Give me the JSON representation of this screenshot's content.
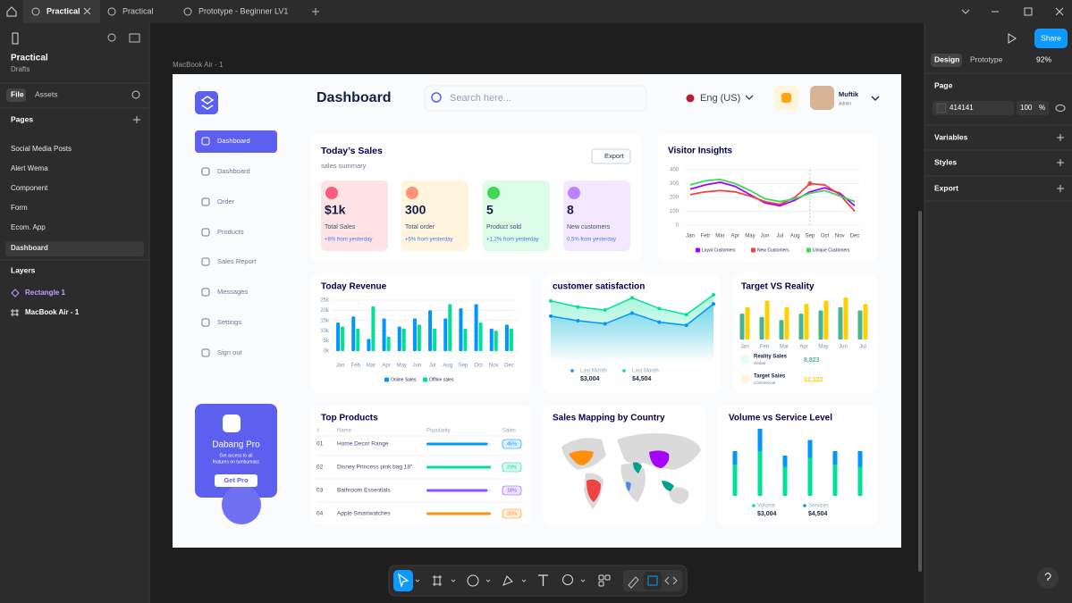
{
  "tabs": [
    "Practical",
    "Practical",
    "Prototype - Beginner LV1"
  ],
  "left_panel": {
    "file_name": "Practical",
    "location": "Drafts",
    "tabs": [
      "File",
      "Assets"
    ],
    "pages_heading": "Pages",
    "pages": [
      "Social Media Posts",
      "Alert Wema",
      "Component",
      "Form",
      "Ecom. App",
      "Dashboard"
    ],
    "layers_heading": "Layers",
    "layers": [
      "Rectangle 1",
      "MacBook Air - 1"
    ]
  },
  "frame_label": "MacBook Air - 1",
  "dashboard": {
    "title": "Dashboard",
    "search_placeholder": "Search here...",
    "language": "Eng (US)",
    "user": {
      "name": "Muftik",
      "role": "Admin"
    },
    "nav": [
      "Dashboard",
      "Dashboard",
      "Order",
      "Products",
      "Sales Report",
      "Messages",
      "Settings",
      "Sign out"
    ],
    "promo": {
      "title": "Dabang Pro",
      "text_lines": [
        "Get access to all",
        "features on tumbumass"
      ],
      "button": "Get Pro"
    },
    "todays_sales": {
      "title": "Today’s Sales",
      "subtitle": "sales summary",
      "export": "Export",
      "stats": [
        {
          "value": "$1k",
          "label": "Total Sales",
          "change": "+8% from yesterday"
        },
        {
          "value": "300",
          "label": "Total order",
          "change": "+5% from yesterday"
        },
        {
          "value": "5",
          "label": "Product sold",
          "change": "+1,2% from yesterday"
        },
        {
          "value": "8",
          "label": "New customers",
          "change": "0,5% from yesterday"
        }
      ]
    },
    "visitor_insights": {
      "type": "line",
      "title": "Visitor Insights",
      "categories": [
        "Jan",
        "Feb",
        "Mar",
        "Apr",
        "May",
        "Jun",
        "Jul",
        "Aug",
        "Sep",
        "Oct",
        "Nov",
        "Dec"
      ],
      "ylim": [
        0,
        400
      ],
      "yticks": [
        0,
        100,
        200,
        300,
        400
      ],
      "series": [
        {
          "name": "Loyal Customers",
          "color": "#a700ff",
          "values": [
            260,
            290,
            310,
            280,
            220,
            160,
            140,
            180,
            240,
            270,
            230,
            140
          ]
        },
        {
          "name": "New Customers",
          "color": "#ef4444",
          "values": [
            220,
            240,
            250,
            240,
            210,
            170,
            150,
            200,
            300,
            290,
            220,
            100
          ]
        },
        {
          "name": "Unique Customers",
          "color": "#3cd856",
          "values": [
            290,
            320,
            330,
            300,
            250,
            190,
            170,
            190,
            230,
            250,
            210,
            170
          ]
        }
      ]
    },
    "today_revenue": {
      "type": "bar",
      "title": "Today Revenue",
      "categories": [
        "Jan",
        "Feb",
        "Mar",
        "Apr",
        "May",
        "Jun",
        "Jul",
        "Aug",
        "Sep",
        "Oct",
        "Nov",
        "Dec"
      ],
      "ylim": [
        0,
        25
      ],
      "yticks": [
        {
          "value": 0,
          "label": "0k"
        },
        {
          "value": 5,
          "label": "5k"
        },
        {
          "value": 10,
          "label": "10k"
        },
        {
          "value": 15,
          "label": "15k"
        },
        {
          "value": 20,
          "label": "20k"
        },
        {
          "value": 25,
          "label": "25k"
        }
      ],
      "series": [
        {
          "name": "Online Sales",
          "color": "#0095ff",
          "values": [
            14,
            17,
            6,
            16,
            12,
            16,
            20,
            16,
            21,
            23,
            11,
            13
          ]
        },
        {
          "name": "Offline sales",
          "color": "#00e096",
          "values": [
            12,
            11,
            22,
            7,
            11,
            13,
            11,
            23,
            11,
            14,
            10,
            11
          ]
        }
      ]
    },
    "customer_satisfaction": {
      "type": "area",
      "title": "customer satisfaction",
      "series": [
        {
          "name": "Last Month",
          "total": "$3,004",
          "color": "#0095ff",
          "values": [
            3.0,
            2.7,
            2.5,
            3.2,
            2.6,
            2.4,
            3.8
          ]
        },
        {
          "name": "Last Month",
          "total": "$4,504",
          "color": "#07e098",
          "values": [
            4.0,
            3.6,
            3.4,
            4.2,
            3.5,
            3.1,
            4.4
          ]
        }
      ]
    },
    "target_vs_reality": {
      "type": "bar",
      "title": "Target VS Reality",
      "categories": [
        "Jan",
        "Feb",
        "Mar",
        "Apr",
        "May",
        "Jun",
        "Jul"
      ],
      "series": [
        {
          "name": "Reality Sales",
          "sub": "Global",
          "total": "8,823",
          "color": "#4ab58e",
          "values": [
            8,
            7,
            6,
            8,
            9,
            10,
            9
          ]
        },
        {
          "name": "Target Sales",
          "sub": "Commercial",
          "total": "12,122",
          "color": "#ffcf00",
          "values": [
            10,
            12,
            10,
            11,
            12,
            13,
            11
          ]
        }
      ]
    },
    "top_products": {
      "title": "Top Products",
      "columns": [
        "#",
        "Name",
        "Popularity",
        "Sales"
      ],
      "rows": [
        {
          "rank": "01",
          "name": "Home Decor Range",
          "popularity": 95,
          "sales": "45%",
          "color": "#0095ff"
        },
        {
          "rank": "02",
          "name": "Disney Princess pink bag 18\"",
          "popularity": 100,
          "sales": "29%",
          "color": "#00e096"
        },
        {
          "rank": "03",
          "name": "Bathroom Essentials",
          "popularity": 95,
          "sales": "18%",
          "color": "#884dff"
        },
        {
          "rank": "04",
          "name": "Apple Smartwatches",
          "popularity": 100,
          "sales": "25%",
          "color": "#ff8f0d"
        }
      ]
    },
    "sales_mapping": {
      "title": "Sales Mapping by Country"
    },
    "volume_service": {
      "type": "bar",
      "title": "Volume vs Service Level",
      "series": [
        {
          "name": "Volume",
          "total": "$3,004",
          "color": "#00e096",
          "values": [
            14,
            20,
            13,
            17,
            14,
            13
          ]
        },
        {
          "name": "Services",
          "total": "$4,504",
          "color": "#0095ff",
          "values": [
            6,
            10,
            5,
            8,
            6,
            7
          ]
        }
      ]
    }
  },
  "right_panel": {
    "share": "Share",
    "tabs": [
      "Design",
      "Prototype"
    ],
    "zoom": "92%",
    "page_heading": "Page",
    "page_color": "414141",
    "opacity": "100",
    "opacity_unit": "%",
    "sections": [
      "Variables",
      "Styles",
      "Export"
    ]
  }
}
